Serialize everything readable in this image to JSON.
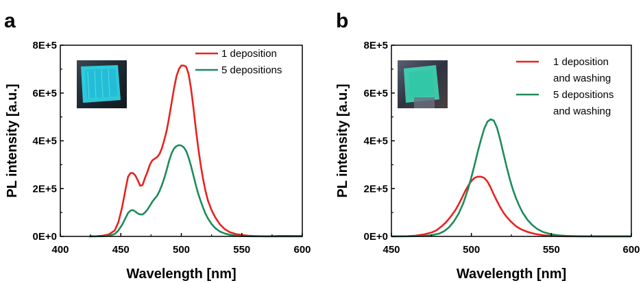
{
  "panels": [
    {
      "letter": "a",
      "legend": [
        {
          "lines": [
            "1 deposition"
          ],
          "color": "#e8211f"
        },
        {
          "lines": [
            "5 depositions"
          ],
          "color": "#1a8c5a"
        }
      ],
      "inset": {
        "description": "photo",
        "glow": "#2fd7ea"
      }
    },
    {
      "letter": "b",
      "legend": [
        {
          "lines": [
            "1 deposition",
            "and washing"
          ],
          "color": "#e8211f"
        },
        {
          "lines": [
            "5 depositions",
            "and washing"
          ],
          "color": "#1a8c5a"
        }
      ],
      "inset": {
        "description": "photo",
        "glow": "#3ee0bd"
      }
    }
  ],
  "chart_data": [
    {
      "type": "line",
      "title": "",
      "xlabel": "Wavelength [nm]",
      "ylabel": "PL intensity [a.u.]",
      "xlim": [
        400,
        600
      ],
      "ylim": [
        0,
        800000
      ],
      "xticks": [
        400,
        450,
        500,
        550,
        600
      ],
      "xtick_labels": [
        "400",
        "450",
        "500",
        "550",
        "600"
      ],
      "yticks": [
        0,
        200000,
        400000,
        600000,
        800000
      ],
      "ytick_labels": [
        "0E+0",
        "2E+5",
        "4E+5",
        "6E+5",
        "8E+5"
      ],
      "grid": false,
      "legend_position": "top-right",
      "series": [
        {
          "name": "1 deposition",
          "color": "#e8211f",
          "x": [
            424,
            430,
            435,
            440,
            445,
            448,
            451,
            454,
            456,
            458,
            460,
            462,
            464,
            466,
            468,
            470,
            472,
            474,
            476,
            478,
            480,
            482,
            484,
            486,
            488,
            490,
            492,
            494,
            496,
            498,
            500,
            502,
            504,
            506,
            508,
            510,
            512,
            514,
            516,
            518,
            520,
            522,
            525,
            528,
            532,
            536,
            540,
            545,
            550,
            555,
            560,
            565,
            570,
            575,
            580,
            590,
            600
          ],
          "y": [
            0,
            1000,
            3000,
            8000,
            25000,
            60000,
            120000,
            200000,
            250000,
            265000,
            265000,
            255000,
            235000,
            212000,
            215000,
            245000,
            270000,
            300000,
            318000,
            325000,
            332000,
            345000,
            370000,
            405000,
            445000,
            500000,
            560000,
            620000,
            670000,
            700000,
            715000,
            715000,
            710000,
            680000,
            620000,
            540000,
            450000,
            370000,
            300000,
            240000,
            190000,
            150000,
            110000,
            80000,
            50000,
            30000,
            18000,
            10000,
            6000,
            3000,
            1500,
            1000,
            500,
            1000,
            2000,
            2000,
            1500
          ]
        },
        {
          "name": "5 depositions",
          "color": "#1a8c5a",
          "x": [
            424,
            430,
            435,
            440,
            445,
            448,
            451,
            454,
            456,
            458,
            460,
            462,
            464,
            466,
            468,
            470,
            472,
            474,
            476,
            478,
            480,
            482,
            484,
            486,
            488,
            490,
            492,
            494,
            496,
            498,
            500,
            502,
            504,
            506,
            508,
            510,
            512,
            514,
            516,
            518,
            520,
            522,
            525,
            528,
            532,
            536,
            540,
            545,
            550,
            555,
            560,
            565,
            570,
            575,
            580,
            590,
            600
          ],
          "y": [
            0,
            500,
            1000,
            3000,
            10000,
            25000,
            48000,
            78000,
            98000,
            108000,
            110000,
            104000,
            96000,
            92000,
            92000,
            100000,
            112000,
            128000,
            145000,
            158000,
            170000,
            190000,
            215000,
            245000,
            280000,
            318000,
            348000,
            368000,
            378000,
            382000,
            380000,
            373000,
            358000,
            330000,
            295000,
            255000,
            215000,
            178000,
            148000,
            120000,
            95000,
            75000,
            52000,
            35000,
            20000,
            12000,
            7000,
            3000,
            1500,
            800,
            500,
            400,
            300,
            300,
            300,
            300,
            300
          ]
        }
      ]
    },
    {
      "type": "line",
      "title": "",
      "xlabel": "Wavelength [nm]",
      "ylabel": "PL intensity [a.u.]",
      "xlim": [
        450,
        600
      ],
      "ylim": [
        0,
        800000
      ],
      "xticks": [
        450,
        500,
        550,
        600
      ],
      "xtick_labels": [
        "450",
        "500",
        "550",
        "600"
      ],
      "yticks": [
        0,
        200000,
        400000,
        600000,
        800000
      ],
      "ytick_labels": [
        "0E+0",
        "2E+5",
        "4E+5",
        "6E+5",
        "8E+5"
      ],
      "grid": false,
      "legend_position": "top-right",
      "series": [
        {
          "name": "1 deposition and washing",
          "color": "#e8211f",
          "x": [
            450,
            460,
            465,
            470,
            475,
            478,
            481,
            484,
            487,
            490,
            492,
            494,
            496,
            498,
            500,
            502,
            504,
            506,
            508,
            510,
            512,
            514,
            516,
            518,
            520,
            522,
            525,
            528,
            531,
            535,
            540,
            545,
            550,
            555,
            560,
            570,
            580,
            590,
            600
          ],
          "y": [
            0,
            1000,
            3000,
            8000,
            16000,
            25000,
            40000,
            58000,
            82000,
            110000,
            134000,
            160000,
            188000,
            212000,
            232000,
            245000,
            250000,
            250000,
            245000,
            230000,
            205000,
            175000,
            148000,
            122000,
            100000,
            82000,
            60000,
            42000,
            30000,
            19000,
            10000,
            5000,
            2500,
            1200,
            600,
            300,
            200,
            100,
            100
          ]
        },
        {
          "name": "5 depositions and washing",
          "color": "#1a8c5a",
          "x": [
            450,
            460,
            470,
            475,
            480,
            483,
            486,
            489,
            492,
            495,
            498,
            500,
            502,
            504,
            506,
            508,
            510,
            512,
            514,
            516,
            518,
            520,
            522,
            524,
            526,
            528,
            530,
            532,
            535,
            538,
            541,
            545,
            550,
            555,
            560,
            565,
            570,
            580,
            590,
            600
          ],
          "y": [
            0,
            500,
            2000,
            5000,
            12000,
            22000,
            38000,
            62000,
            95000,
            140000,
            200000,
            248000,
            300000,
            355000,
            405000,
            450000,
            480000,
            490000,
            485000,
            455000,
            405000,
            348000,
            292000,
            240000,
            195000,
            158000,
            127000,
            100000,
            70000,
            48000,
            32000,
            18000,
            9000,
            4000,
            2000,
            1000,
            500,
            300,
            200,
            100
          ]
        }
      ]
    }
  ]
}
